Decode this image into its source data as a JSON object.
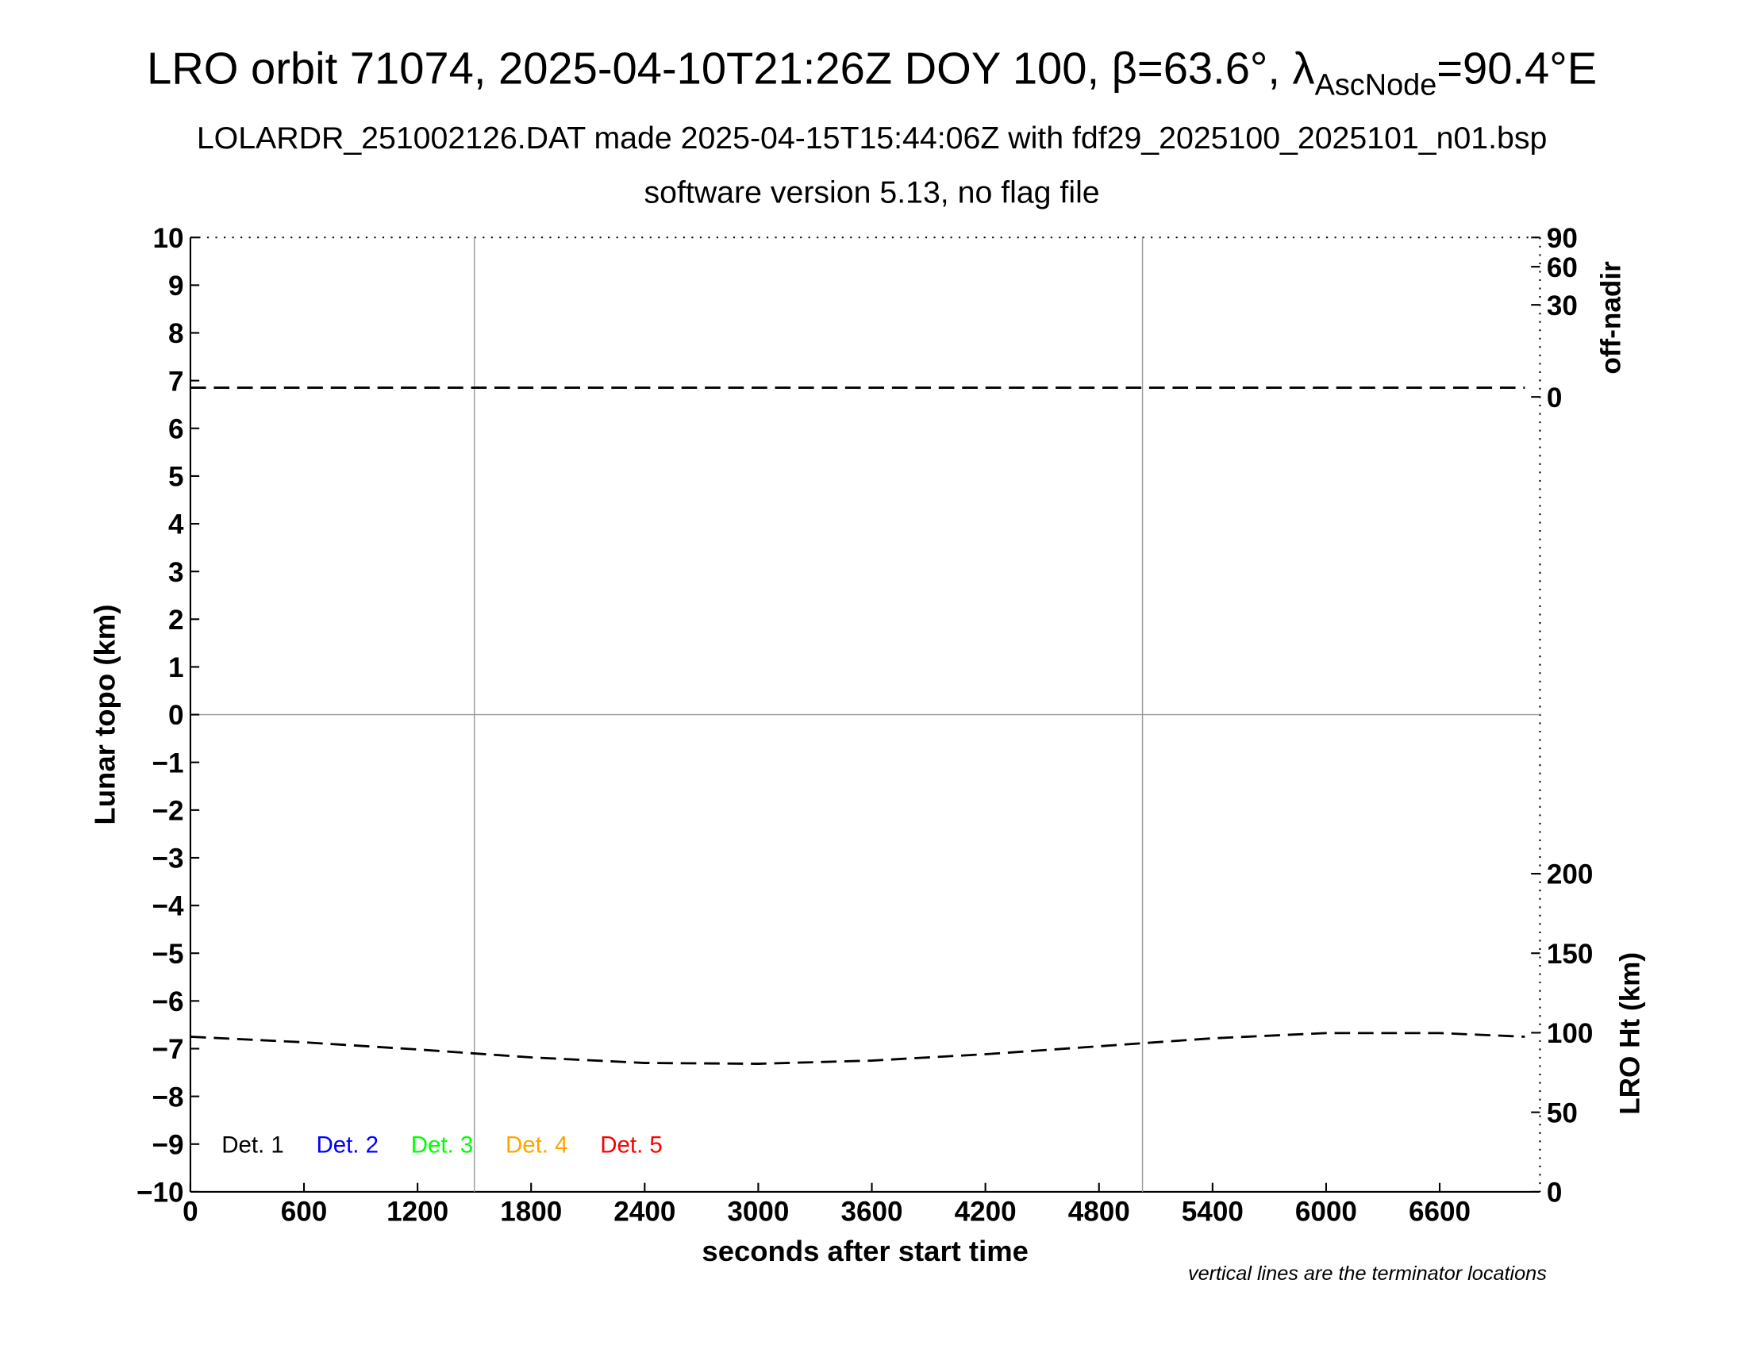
{
  "chart_data": {
    "type": "line",
    "title_main": "LRO orbit 71074, 2025-04-10T21:26Z DOY 100, β=63.6°, λ",
    "title_sub": "AscNode",
    "title_end": "=90.4°E",
    "subtitle": [
      "LOLARDR_251002126.DAT made 2025-04-15T15:44:06Z with fdf29_2025100_2025101_n01.bsp",
      "software version 5.13, no flag file"
    ],
    "xlabel": "seconds after start time",
    "ylabel": "Lunar topo (km)",
    "note": "vertical lines are the terminator locations",
    "xlim": [
      0,
      7130
    ],
    "xticks": [
      0,
      600,
      1200,
      1800,
      2400,
      3000,
      3600,
      4200,
      4800,
      5400,
      6000,
      6600
    ],
    "ylim": [
      -10,
      10
    ],
    "yticks": [
      10,
      9,
      8,
      7,
      6,
      5,
      4,
      3,
      2,
      1,
      0,
      {
        "value": -1,
        "label": "−1"
      },
      {
        "value": -2,
        "label": "−2"
      },
      {
        "value": -3,
        "label": "−3"
      },
      {
        "value": -4,
        "label": "−4"
      },
      {
        "value": -5,
        "label": "−5"
      },
      {
        "value": -6,
        "label": "−6"
      },
      {
        "value": -7,
        "label": "−7"
      },
      {
        "value": -8,
        "label": "−8"
      },
      {
        "value": -9,
        "label": "−9"
      },
      {
        "value": -10,
        "label": "−10"
      }
    ],
    "off_nadir": {
      "label": "off-nadir",
      "scale": "sqrt",
      "lim": [
        0,
        90
      ],
      "ticks": [
        0,
        30,
        60,
        90
      ]
    },
    "height": {
      "label": "LRO Ht (km)",
      "lim": [
        0,
        600
      ],
      "ticks": [
        0,
        50,
        100,
        150,
        200
      ]
    },
    "terminators": [
      1500,
      5030
    ],
    "x": [
      0,
      600,
      1200,
      1800,
      2400,
      3000,
      3600,
      4200,
      4800,
      5400,
      6000,
      6600,
      7050
    ],
    "series": [
      {
        "axis": "off_nadir",
        "color": "#000000",
        "values": [
          0.3,
          0.3,
          0.3,
          0.3,
          0.3,
          0.3,
          0.3,
          0.3,
          0.3,
          0.3,
          0.3,
          0.3,
          0.3
        ]
      },
      {
        "axis": "height",
        "color": "#000000",
        "values": [
          97.5,
          94,
          89.5,
          84.5,
          81,
          80.5,
          82.5,
          86.5,
          91.5,
          96.5,
          99.8,
          99.8,
          97.5
        ]
      }
    ],
    "detectors": [
      {
        "name": "Det. 1",
        "color": "#000000"
      },
      {
        "name": "Det. 2",
        "color": "#0000ff"
      },
      {
        "name": "Det. 3",
        "color": "#00ff00"
      },
      {
        "name": "Det. 4",
        "color": "#ffa500"
      },
      {
        "name": "Det. 5",
        "color": "#ff0000"
      }
    ]
  }
}
